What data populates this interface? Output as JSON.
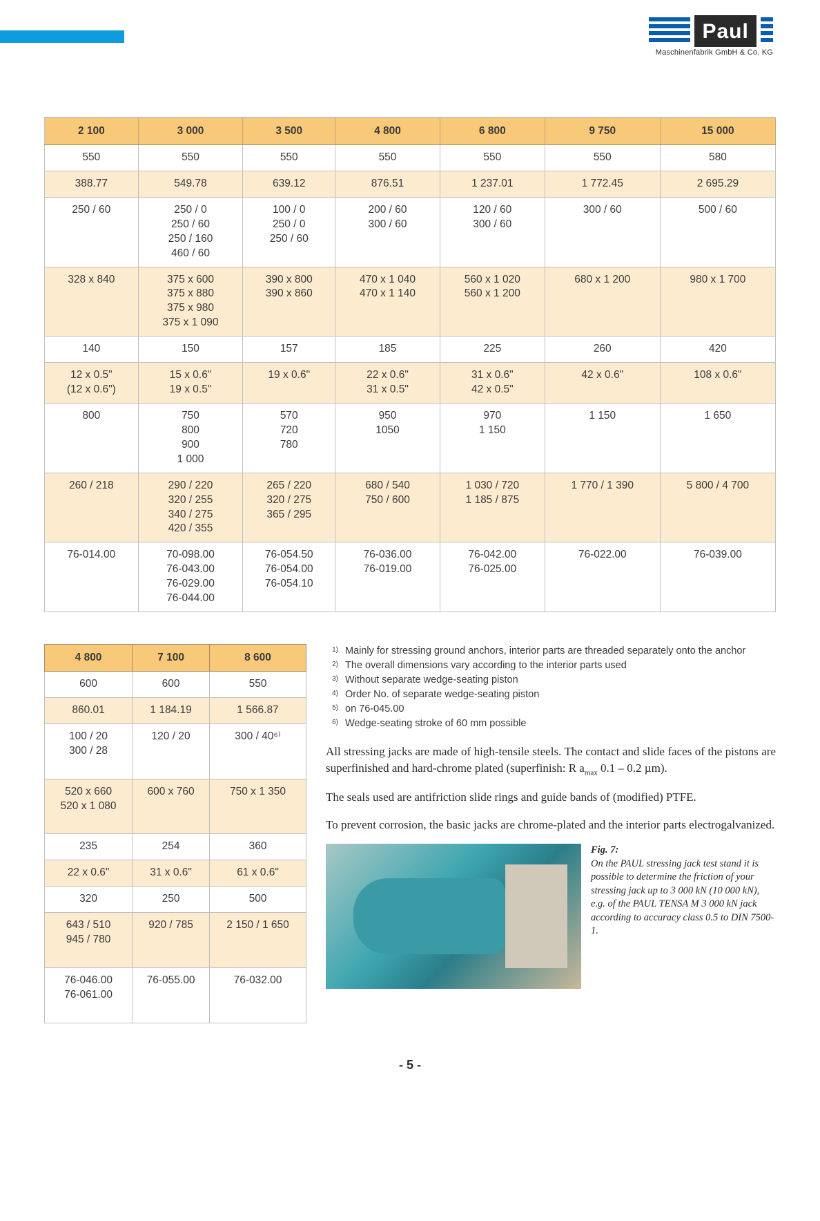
{
  "branding": {
    "logo_text": "Paul",
    "company": "Maschinenfabrik GmbH & Co. KG"
  },
  "main_table": {
    "headers": [
      "2 100",
      "3 000",
      "3 500",
      "4 800",
      "6 800",
      "9 750",
      "15 000"
    ],
    "rows": [
      {
        "shade": false,
        "cells": [
          "550",
          "550",
          "550",
          "550",
          "550",
          "550",
          "580"
        ]
      },
      {
        "shade": true,
        "cells": [
          "388.77",
          "549.78",
          "639.12",
          "876.51",
          "1 237.01",
          "1 772.45",
          "2 695.29"
        ]
      },
      {
        "shade": false,
        "cells": [
          "250 / 60",
          "250 / 0\n250 / 60\n250 / 160\n460 / 60",
          "100 / 0\n250 / 0\n250 / 60",
          "200 / 60\n300 / 60",
          "120 / 60\n300 / 60",
          "300 / 60",
          "500 / 60"
        ]
      },
      {
        "shade": true,
        "cells": [
          "328 x 840",
          "375 x 600\n375 x 880\n375 x 980\n375 x 1 090",
          "390 x 800\n390 x 860",
          "470 x 1 040\n470 x 1 140",
          "560 x 1 020\n560 x 1 200",
          "680 x 1 200",
          "980 x 1 700"
        ]
      },
      {
        "shade": false,
        "cells": [
          "140",
          "150",
          "157",
          "185",
          "225",
          "260",
          "420"
        ]
      },
      {
        "shade": true,
        "cells": [
          "12 x 0.5\"\n(12 x 0.6\")",
          "15 x 0.6\"\n19 x 0.5\"",
          "19 x 0.6\"",
          "22 x 0.6\"\n31 x 0.5\"",
          "31 x 0.6\"\n42 x 0.5\"",
          "42 x 0.6\"",
          "108 x 0.6\""
        ]
      },
      {
        "shade": false,
        "cells": [
          "800",
          "750\n800\n900\n1 000",
          "570\n720\n780",
          "950\n1050",
          "970\n1 150",
          "1 150",
          "1 650"
        ]
      },
      {
        "shade": true,
        "cells": [
          "260 / 218",
          "290 / 220\n320 / 255\n340 / 275\n420 / 355",
          "265 / 220\n320 / 275\n365 / 295",
          "680 / 540\n750 / 600",
          "1 030 / 720\n1 185 / 875",
          "1 770 / 1 390",
          "5 800 / 4 700"
        ]
      },
      {
        "shade": false,
        "cells": [
          "76-014.00",
          "70-098.00\n76-043.00\n76-029.00\n76-044.00",
          "76-054.50\n76-054.00\n76-054.10",
          "76-036.00\n76-019.00",
          "76-042.00\n76-025.00",
          "76-022.00",
          "76-039.00"
        ]
      }
    ]
  },
  "side_table": {
    "headers": [
      "4 800",
      "7 100",
      "8 600"
    ],
    "rows": [
      {
        "shade": false,
        "cells": [
          "600",
          "600",
          "550"
        ]
      },
      {
        "shade": true,
        "cells": [
          "860.01",
          "1 184.19",
          "1 566.87"
        ]
      },
      {
        "shade": false,
        "cells": [
          "100 / 20\n300 / 28\n\n",
          "120 / 20",
          "300 / 40⁶⁾"
        ]
      },
      {
        "shade": true,
        "cells": [
          "520 x 660\n520 x 1 080\n\n",
          "600 x 760",
          "750 x 1 350"
        ]
      },
      {
        "shade": false,
        "cells": [
          "235",
          "254",
          "360"
        ]
      },
      {
        "shade": true,
        "cells": [
          "22 x 0.6\"",
          "31 x 0.6\"",
          "61 x 0.6\""
        ]
      },
      {
        "shade": false,
        "cells": [
          "320",
          "250",
          "500"
        ]
      },
      {
        "shade": true,
        "cells": [
          "643 / 510\n945 / 780\n\n",
          "920 / 785",
          "2 150 / 1 650"
        ]
      },
      {
        "shade": false,
        "cells": [
          "76-046.00\n76-061.00\n\n",
          "76-055.00",
          "76-032.00"
        ]
      }
    ]
  },
  "footnotes": [
    {
      "n": "1)",
      "t": "Mainly for stressing ground anchors, interior parts are threaded separately onto the anchor"
    },
    {
      "n": "2)",
      "t": "The overall dimensions vary according to the interior parts used"
    },
    {
      "n": "3)",
      "t": "Without separate wedge-seating piston"
    },
    {
      "n": "4)",
      "t": "Order No. of separate wedge-seating piston"
    },
    {
      "n": "5)",
      "t": "on 76-045.00"
    },
    {
      "n": "6)",
      "t": "Wedge-seating stroke of 60 mm possible"
    }
  ],
  "paragraphs": {
    "p1a": "All stressing jacks are made of high-tensile steels. The contact and slide faces of the pistons are super­finished and hard-chrome plated (superfinish: R a",
    "p1b": " 0.1 – 0.2 µm).",
    "p1sub": "max",
    "p2": "The seals used are antifriction slide rings and guide bands of (modified) PTFE.",
    "p3": "To prevent corrosion, the basic jacks are chrome-plated and the interior parts electrogalvanized."
  },
  "figure": {
    "label": "Fig. 7:",
    "caption": "On the PAUL stressing jack test stand it is possible to determine the friction of your stressing jack up to 3 000 kN (10 000 kN), e.g. of the PAUL TENSA M 3 000 kN jack according to accuracy class 0.5 to DIN 7500-1."
  },
  "page_number": "- 5 -"
}
